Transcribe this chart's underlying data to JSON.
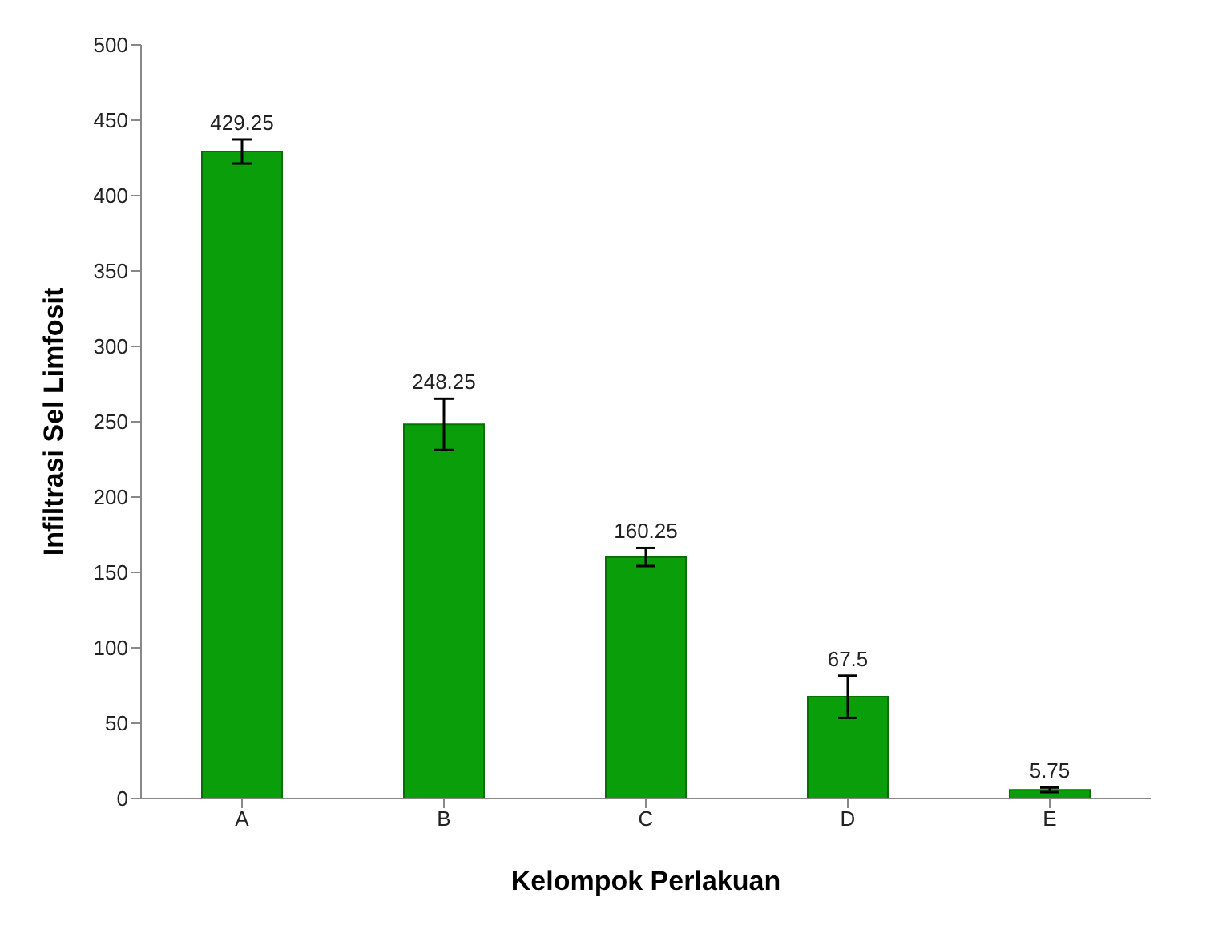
{
  "chart_data": {
    "type": "bar",
    "xlabel": "Kelompok Perlakuan",
    "ylabel": "Infiltrasi Sel Limfosit",
    "categories": [
      "A",
      "B",
      "C",
      "D",
      "E"
    ],
    "values": [
      429.25,
      248.25,
      160.25,
      67.5,
      5.75
    ],
    "errors": [
      8,
      17,
      6,
      14,
      1.5
    ],
    "color": "#0a9e0a",
    "ylim": [
      0,
      500
    ],
    "yticks": [
      0,
      50,
      100,
      150,
      200,
      250,
      300,
      350,
      400,
      450,
      500
    ],
    "data_labels": true
  }
}
